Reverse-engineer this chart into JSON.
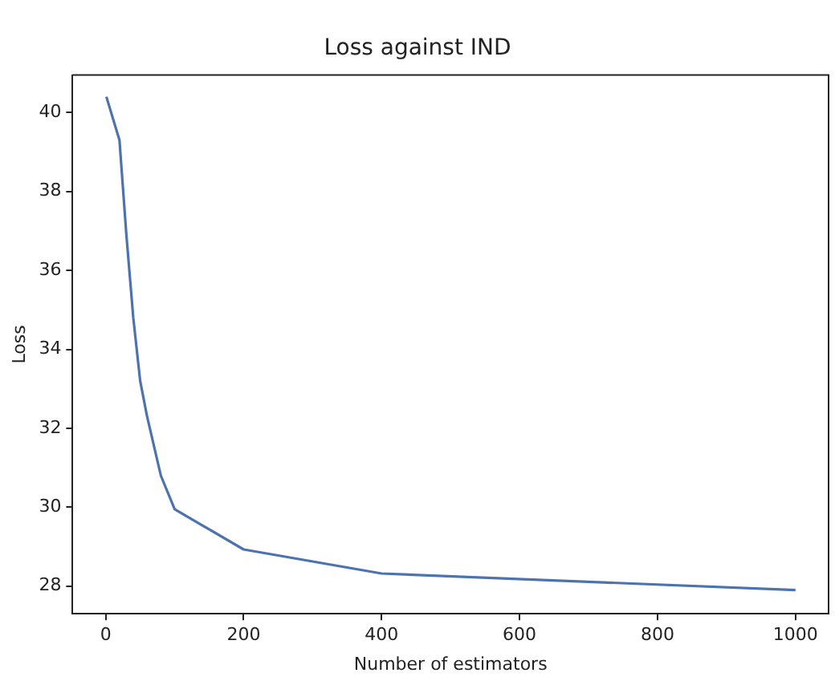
{
  "chart_data": {
    "type": "line",
    "title": "Loss against IND",
    "xlabel": "Number of estimators",
    "ylabel": "Loss",
    "x": [
      1,
      20,
      30,
      40,
      50,
      60,
      80,
      100,
      200,
      400,
      1000
    ],
    "series": [
      {
        "color": "#4c72b0",
        "values": [
          40.4,
          39.3,
          36.9,
          34.8,
          33.2,
          32.3,
          30.8,
          29.95,
          28.93,
          28.32,
          27.9
        ]
      }
    ],
    "xlim": [
      -48,
      1048
    ],
    "xticks": [
      0,
      200,
      400,
      600,
      800,
      1000
    ],
    "ylim": [
      27.3,
      40.95
    ],
    "yticks": [
      28,
      30,
      32,
      34,
      36,
      38,
      40
    ],
    "grid": false,
    "legend": false,
    "marker": "none",
    "line_style": "solid"
  }
}
